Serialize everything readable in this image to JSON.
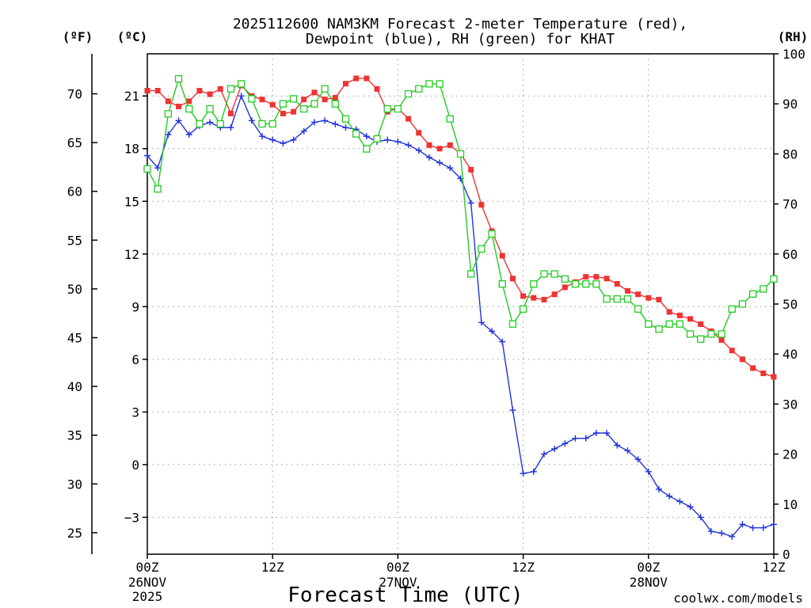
{
  "title_line1": "2025112600 NAM3KM Forecast 2-meter Temperature (red),",
  "title_line2": "Dewpoint (blue), RH (green) for KHAT",
  "unit_f": "(ºF)",
  "unit_c": "(ºC)",
  "unit_rh": "(RH)",
  "xlabel": "Forecast Time (UTC)",
  "credit": "coolwx.com/models",
  "colors": {
    "temp": "#ee3333",
    "dew": "#2233dd",
    "rh": "#22cc22",
    "credit": "#dd2222"
  },
  "chart_data": {
    "type": "line",
    "title": "2025112600 NAM3KM Forecast 2-meter Temperature (red), Dewpoint (blue), RH (green) for KHAT",
    "x_range_hours": [
      0,
      60
    ],
    "x_ticks": [
      {
        "hour": 0,
        "label": "00Z",
        "sub": [
          "26NOV",
          "2025"
        ]
      },
      {
        "hour": 12,
        "label": "12Z",
        "sub": []
      },
      {
        "hour": 24,
        "label": "00Z",
        "sub": [
          "27NOV"
        ]
      },
      {
        "hour": 36,
        "label": "12Z",
        "sub": []
      },
      {
        "hour": 48,
        "label": "00Z",
        "sub": [
          "28NOV"
        ]
      },
      {
        "hour": 60,
        "label": "12Z",
        "sub": []
      }
    ],
    "c_axis": {
      "range": [
        -5.1,
        23.4
      ],
      "ticks": [
        -3,
        0,
        3,
        6,
        9,
        12,
        15,
        18,
        21
      ],
      "labels": [
        "−3",
        "0",
        "3",
        "6",
        "9",
        "12",
        "15",
        "18",
        "21"
      ]
    },
    "f_axis": {
      "range": [
        22.8,
        74.1
      ],
      "ticks": [
        25,
        30,
        35,
        40,
        45,
        50,
        55,
        60,
        65,
        70
      ],
      "labels": [
        "25",
        "30",
        "35",
        "40",
        "45",
        "50",
        "55",
        "60",
        "65",
        "70"
      ]
    },
    "rh_axis": {
      "range": [
        0,
        100
      ],
      "ticks": [
        0,
        10,
        20,
        30,
        40,
        50,
        60,
        70,
        80,
        90,
        100
      ],
      "labels": [
        "0",
        "10",
        "20",
        "30",
        "40",
        "50",
        "60",
        "70",
        "80",
        "90",
        "100"
      ]
    },
    "series": [
      {
        "name": "Temperature",
        "unit": "C",
        "marker": "square-filled",
        "values": [
          21.3,
          21.3,
          20.7,
          20.4,
          20.7,
          21.3,
          21.1,
          21.4,
          20.0,
          21.6,
          21.0,
          20.8,
          20.5,
          20.0,
          20.1,
          20.8,
          21.2,
          20.8,
          20.9,
          21.7,
          22.0,
          22.0,
          21.4,
          20.1,
          20.3,
          19.7,
          18.9,
          18.2,
          18.0,
          18.2,
          17.7,
          16.8,
          14.8,
          13.3,
          11.9,
          10.6,
          9.6,
          9.5,
          9.4,
          9.7,
          10.1,
          10.4,
          10.7,
          10.7,
          10.6,
          10.3,
          9.9,
          9.7,
          9.5,
          9.4,
          8.7,
          8.5,
          8.3,
          8.0,
          7.6,
          7.1,
          6.5,
          6.0,
          5.5,
          5.2,
          5.0
        ]
      },
      {
        "name": "Dewpoint",
        "unit": "C",
        "marker": "plus",
        "values": [
          17.6,
          16.9,
          18.8,
          19.6,
          18.8,
          19.3,
          19.5,
          19.2,
          19.2,
          21.0,
          19.6,
          18.7,
          18.5,
          18.3,
          18.5,
          19.0,
          19.5,
          19.6,
          19.4,
          19.2,
          19.1,
          18.7,
          18.4,
          18.5,
          18.4,
          18.2,
          17.9,
          17.5,
          17.2,
          16.9,
          16.3,
          14.9,
          8.1,
          7.6,
          7.0,
          3.1,
          -0.5,
          -0.4,
          0.6,
          0.9,
          1.2,
          1.5,
          1.5,
          1.8,
          1.8,
          1.1,
          0.8,
          0.3,
          -0.4,
          -1.4,
          -1.8,
          -2.1,
          -2.4,
          -3.0,
          -3.8,
          -3.9,
          -4.1,
          -3.4,
          -3.6,
          -3.6,
          -3.4
        ]
      },
      {
        "name": "RH",
        "unit": "%",
        "marker": "square-open",
        "values": [
          77,
          73,
          88,
          95,
          89,
          86,
          89,
          86,
          93,
          94,
          91,
          86,
          86,
          90,
          91,
          89,
          90,
          93,
          90,
          87,
          84,
          81,
          83,
          89,
          89,
          92,
          93,
          94,
          94,
          87,
          80,
          56,
          61,
          64,
          54,
          46,
          49,
          54,
          56,
          56,
          55,
          54,
          54,
          54,
          51,
          51,
          51,
          49,
          46,
          45,
          46,
          46,
          44,
          43,
          44,
          44,
          49,
          50,
          52,
          53,
          55
        ]
      }
    ]
  }
}
